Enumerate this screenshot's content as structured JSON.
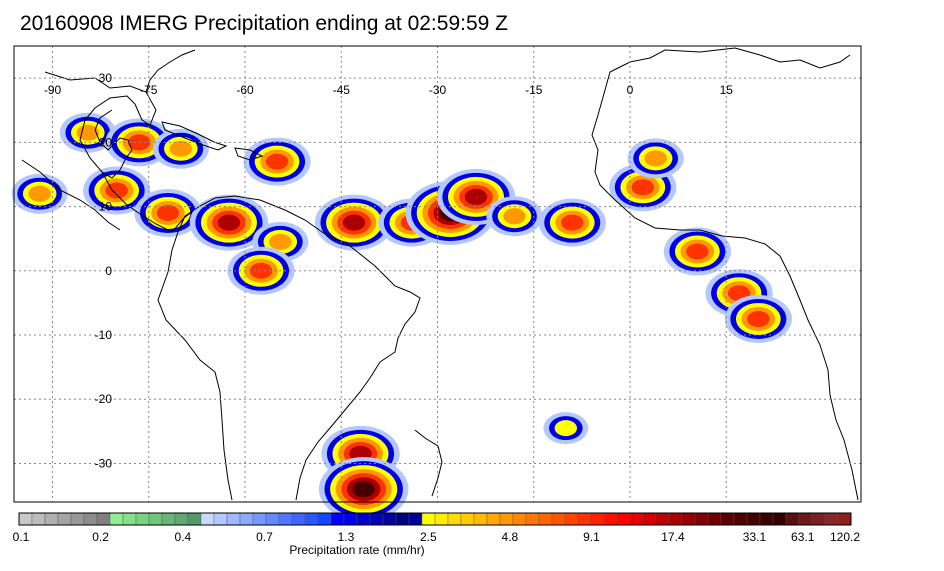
{
  "title": "20160908 IMERG Precipitation ending at 02:59:59 Z",
  "map": {
    "projection": "equirectangular",
    "lon_range": [
      -96,
      36
    ],
    "lat_range": [
      -36,
      35
    ],
    "lon_ticks": [
      {
        "value": -90,
        "label": "-90"
      },
      {
        "value": -75,
        "label": "-75"
      },
      {
        "value": -60,
        "label": "-60"
      },
      {
        "value": -45,
        "label": "-45"
      },
      {
        "value": -30,
        "label": "-30"
      },
      {
        "value": -15,
        "label": "-15"
      },
      {
        "value": 0,
        "label": "0"
      },
      {
        "value": 15,
        "label": "15"
      }
    ],
    "lat_ticks": [
      {
        "value": 30,
        "label": "30"
      },
      {
        "value": 20,
        "label": "20"
      },
      {
        "value": 10,
        "label": "10"
      },
      {
        "value": 0,
        "label": "0"
      },
      {
        "value": -10,
        "label": "-10"
      },
      {
        "value": -20,
        "label": "-20"
      },
      {
        "value": -30,
        "label": "-30"
      }
    ],
    "grid": true,
    "coastline_color": "#000000",
    "grid_color": "#888888"
  },
  "colorbar": {
    "title": "Precipitation rate (mm/hr)",
    "colors": [
      "#c8c8c8",
      "#bcbcbc",
      "#b0b0b0",
      "#a4a4a4",
      "#989898",
      "#8c8c8c",
      "#808080",
      "#90ee90",
      "#86e08a",
      "#7cd284",
      "#72c47e",
      "#68b678",
      "#5ea872",
      "#549a6c",
      "#c8d8ff",
      "#b4c8ff",
      "#a0b8ff",
      "#8ca8ff",
      "#7898ff",
      "#6488ff",
      "#5078ff",
      "#3c68ff",
      "#2858ff",
      "#1448ff",
      "#0000ff",
      "#0000e6",
      "#0000cd",
      "#0000b4",
      "#00009b",
      "#000082",
      "#0000a0",
      "#ffff00",
      "#ffee00",
      "#ffdd00",
      "#ffcc00",
      "#ffbb00",
      "#ffaa00",
      "#ff9900",
      "#ff8800",
      "#ff7700",
      "#ff6600",
      "#ff5500",
      "#ff4400",
      "#ff3300",
      "#ff2200",
      "#ff1100",
      "#ff0000",
      "#e60000",
      "#d20000",
      "#be0000",
      "#aa0000",
      "#960000",
      "#820000",
      "#6e0000",
      "#5a0000",
      "#500000",
      "#460000",
      "#3c0000",
      "#320000",
      "#5a1010",
      "#6e1818",
      "#7a2020",
      "#842828",
      "#8e2020"
    ],
    "tick_labels": [
      {
        "value": 0.1,
        "label": "0.1",
        "pos": 0.0
      },
      {
        "value": 0.2,
        "label": "0.2",
        "pos": 0.098
      },
      {
        "value": 0.4,
        "label": "0.4",
        "pos": 0.197
      },
      {
        "value": 0.7,
        "label": "0.7",
        "pos": 0.295
      },
      {
        "value": 1.3,
        "label": "1.3",
        "pos": 0.393
      },
      {
        "value": 2.5,
        "label": "2.5",
        "pos": 0.492
      },
      {
        "value": 4.8,
        "label": "4.8",
        "pos": 0.59
      },
      {
        "value": 9.1,
        "label": "9.1",
        "pos": 0.688
      },
      {
        "value": 17.4,
        "label": "17.4",
        "pos": 0.786
      },
      {
        "value": 33.1,
        "label": "33.1",
        "pos": 0.884
      },
      {
        "value": 63.1,
        "label": "63.1",
        "pos": 0.942
      },
      {
        "value": 120.2,
        "label": "120.2",
        "pos": 1.0
      }
    ]
  },
  "precip_cells": [
    {
      "lon": -84.5,
      "lat": 21.5,
      "rate": 4.8
    },
    {
      "lon": -76.5,
      "lat": 20.0,
      "rate": 9.1
    },
    {
      "lon": -70.0,
      "lat": 19.0,
      "rate": 4.8
    },
    {
      "lon": -55.0,
      "lat": 17.0,
      "rate": 9.1
    },
    {
      "lon": -80.0,
      "lat": 12.5,
      "rate": 9.1
    },
    {
      "lon": -72.0,
      "lat": 9.0,
      "rate": 9.1
    },
    {
      "lon": -62.5,
      "lat": 7.5,
      "rate": 17.4
    },
    {
      "lon": -54.5,
      "lat": 4.5,
      "rate": 4.8
    },
    {
      "lon": -57.5,
      "lat": 0.0,
      "rate": 9.1
    },
    {
      "lon": -43.0,
      "lat": 7.5,
      "rate": 17.4
    },
    {
      "lon": -34.0,
      "lat": 7.5,
      "rate": 9.1
    },
    {
      "lon": -28.0,
      "lat": 9.0,
      "rate": 33.1
    },
    {
      "lon": -24.0,
      "lat": 11.5,
      "rate": 17.4
    },
    {
      "lon": -18.0,
      "lat": 8.5,
      "rate": 4.8
    },
    {
      "lon": -9.0,
      "lat": 7.5,
      "rate": 9.1
    },
    {
      "lon": 2.0,
      "lat": 13.0,
      "rate": 9.1
    },
    {
      "lon": 4.0,
      "lat": 17.5,
      "rate": 4.8
    },
    {
      "lon": 10.5,
      "lat": 3.0,
      "rate": 9.1
    },
    {
      "lon": 17.0,
      "lat": -3.5,
      "rate": 9.1
    },
    {
      "lon": 20.0,
      "lat": -7.5,
      "rate": 9.1
    },
    {
      "lon": -42.0,
      "lat": -28.5,
      "rate": 17.4
    },
    {
      "lon": -41.5,
      "lat": -34.0,
      "rate": 33.1
    },
    {
      "lon": -10.0,
      "lat": -24.5,
      "rate": 2.5
    },
    {
      "lon": -92.0,
      "lat": 12.0,
      "rate": 4.8
    }
  ]
}
